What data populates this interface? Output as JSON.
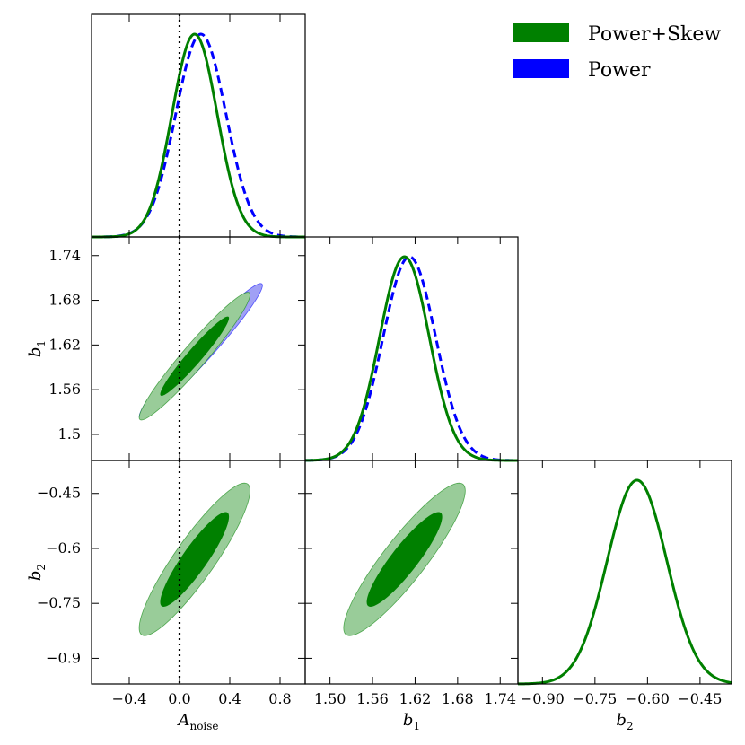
{
  "chart_data": {
    "type": "corner",
    "parameters": [
      {
        "key": "A",
        "label": "A",
        "subscript": "noise",
        "ticks": [
          -0.4,
          0.0,
          0.4,
          0.8
        ],
        "tick_labels": [
          "−0.4",
          "0.0",
          "0.4",
          "0.8"
        ],
        "range": [
          -0.7,
          1.0
        ]
      },
      {
        "key": "b1",
        "label": "b",
        "subscript": "1",
        "ticks": [
          1.5,
          1.56,
          1.62,
          1.68,
          1.74
        ],
        "tick_labels_x": [
          "1.50",
          "1.56",
          "1.62",
          "1.68",
          "1.74"
        ],
        "tick_labels_y": [
          "1.5",
          "1.56",
          "1.62",
          "1.68",
          "1.74"
        ],
        "range": [
          1.465,
          1.765
        ]
      },
      {
        "key": "b2",
        "label": "b",
        "subscript": "2",
        "ticks": [
          -0.9,
          -0.75,
          -0.6,
          -0.45
        ],
        "tick_labels_x": [
          "−0.90",
          "−0.75",
          "−0.60",
          "−0.45"
        ],
        "tick_labels_y": [
          "−0.9",
          "−0.75",
          "−0.6",
          "−0.45"
        ],
        "range": [
          -0.97,
          -0.36
        ]
      }
    ],
    "truth_line": {
      "parameter": "A",
      "value": 0.0,
      "style": "dotted",
      "color": "#000000"
    },
    "series": [
      {
        "name": "Power+Skew",
        "color": "#008000",
        "fill_inner": "#008000",
        "fill_outer": "#99cc99",
        "line_style": "solid",
        "means": {
          "A": 0.12,
          "b1": 1.605,
          "b2": -0.63
        },
        "sigmas": {
          "A": 0.18,
          "b1": 0.035,
          "b2": 0.085
        },
        "correlations": {
          "A_b1": 0.96,
          "A_b2": 0.9,
          "b1_b2": 0.9
        }
      },
      {
        "name": "Power",
        "color": "#0000ff",
        "fill_inner": "#0000ff",
        "fill_outer": "#a0a0f5",
        "line_style": "dashed",
        "means": {
          "A": 0.17,
          "b1": 1.612
        },
        "sigmas": {
          "A": 0.2,
          "b1": 0.037
        },
        "correlations": {
          "A_b1": 0.97
        }
      }
    ],
    "legend": {
      "position": "top-right",
      "entries": [
        "Power+Skew",
        "Power"
      ]
    }
  }
}
